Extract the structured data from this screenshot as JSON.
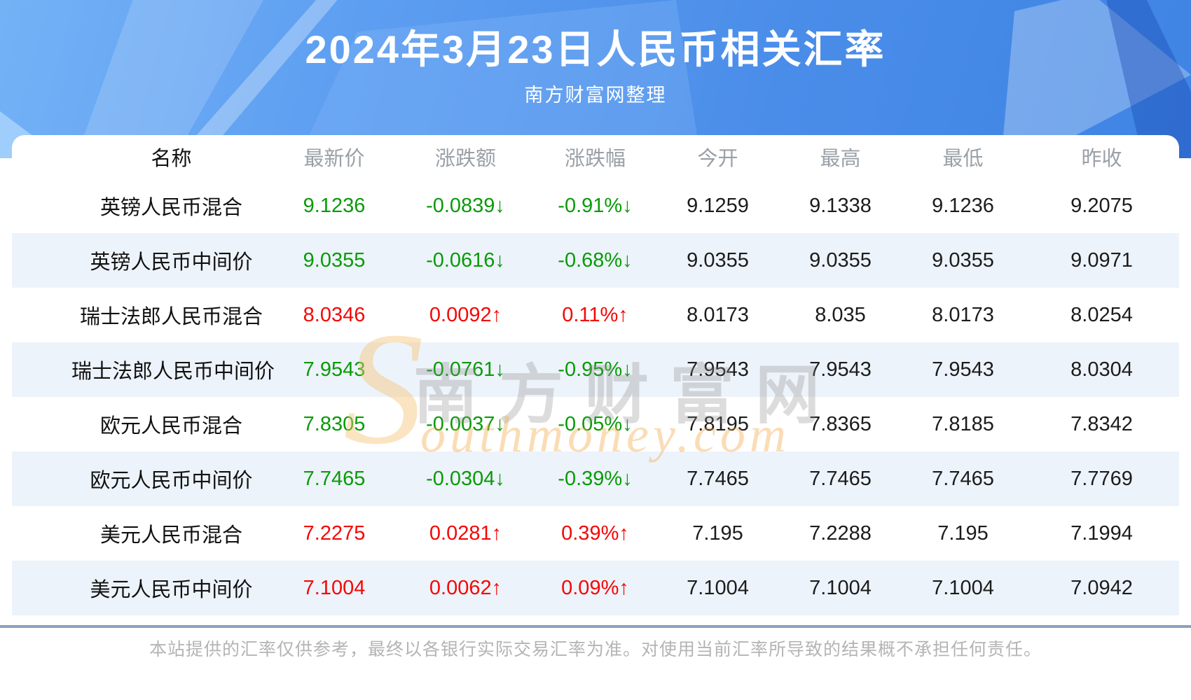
{
  "header": {
    "title": "2024年3月23日人民币相关汇率",
    "subtitle": "南方财富网整理"
  },
  "table": {
    "columns": [
      "名称",
      "最新价",
      "涨跌额",
      "涨跌幅",
      "今开",
      "最高",
      "最低",
      "昨收"
    ],
    "rows": [
      {
        "name": "英镑人民币混合",
        "latest": "9.1236",
        "change": "-0.0839",
        "change_pct": "-0.91%",
        "arrow": "↓",
        "direction": "down",
        "open": "9.1259",
        "high": "9.1338",
        "low": "9.1236",
        "prev_close": "9.2075"
      },
      {
        "name": "英镑人民币中间价",
        "latest": "9.0355",
        "change": "-0.0616",
        "change_pct": "-0.68%",
        "arrow": "↓",
        "direction": "down",
        "open": "9.0355",
        "high": "9.0355",
        "low": "9.0355",
        "prev_close": "9.0971"
      },
      {
        "name": "瑞士法郎人民币混合",
        "latest": "8.0346",
        "change": "0.0092",
        "change_pct": "0.11%",
        "arrow": "↑",
        "direction": "up",
        "open": "8.0173",
        "high": "8.035",
        "low": "8.0173",
        "prev_close": "8.0254"
      },
      {
        "name": "瑞士法郎人民币中间价",
        "latest": "7.9543",
        "change": "-0.0761",
        "change_pct": "-0.95%",
        "arrow": "↓",
        "direction": "down",
        "open": "7.9543",
        "high": "7.9543",
        "low": "7.9543",
        "prev_close": "8.0304"
      },
      {
        "name": "欧元人民币混合",
        "latest": "7.8305",
        "change": "-0.0037",
        "change_pct": "-0.05%",
        "arrow": "↓",
        "direction": "down",
        "open": "7.8195",
        "high": "7.8365",
        "low": "7.8185",
        "prev_close": "7.8342"
      },
      {
        "name": "欧元人民币中间价",
        "latest": "7.7465",
        "change": "-0.0304",
        "change_pct": "-0.39%",
        "arrow": "↓",
        "direction": "down",
        "open": "7.7465",
        "high": "7.7465",
        "low": "7.7465",
        "prev_close": "7.7769"
      },
      {
        "name": "美元人民币混合",
        "latest": "7.2275",
        "change": "0.0281",
        "change_pct": "0.39%",
        "arrow": "↑",
        "direction": "up",
        "open": "7.195",
        "high": "7.2288",
        "low": "7.195",
        "prev_close": "7.1994"
      },
      {
        "name": "美元人民币中间价",
        "latest": "7.1004",
        "change": "0.0062",
        "change_pct": "0.09%",
        "arrow": "↑",
        "direction": "up",
        "open": "7.1004",
        "high": "7.1004",
        "low": "7.1004",
        "prev_close": "7.0942"
      }
    ]
  },
  "watermark": {
    "s": "S",
    "cn": "南方财富网",
    "en": "outhmoney.com"
  },
  "footer": {
    "disclaimer": "本站提供的汇率仅供参考，最终以各银行实际交易汇率为准。对使用当前汇率所导致的结果概不承担任何责任。"
  },
  "colors": {
    "up_red": "#f40707",
    "down_green": "#089b08",
    "hero_blue": "#4a8de9",
    "row_alt": "#edf3fa",
    "divider": "#8ba1bf"
  }
}
